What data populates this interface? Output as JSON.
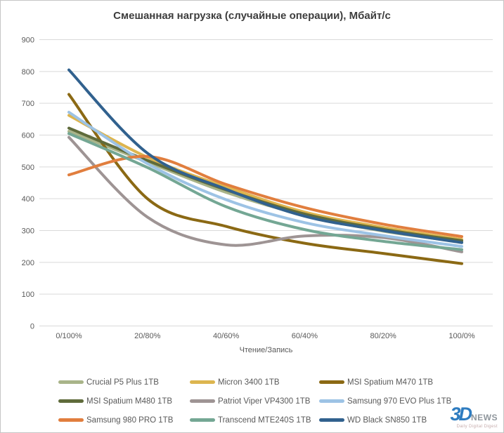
{
  "chart_data": {
    "type": "line",
    "title": "Смешанная нагрузка (случайные операции), Мбайт/с",
    "xlabel": "Чтение/Запись",
    "ylabel": "",
    "categories": [
      "0/100%",
      "20/80%",
      "40/60%",
      "60/40%",
      "80/20%",
      "100/0%"
    ],
    "ylim": [
      0,
      900
    ],
    "ytick_step": 100,
    "grid": true,
    "smooth": true,
    "legend_position": "bottom",
    "axis_text_color": "#595959",
    "gridline_color": "#D9D9D9",
    "series": [
      {
        "name": "Crucial P5 Plus 1TB",
        "color": "#A9B489",
        "values": [
          612,
          515,
          420,
          348,
          298,
          264
        ]
      },
      {
        "name": "Micron 3400 1TB",
        "color": "#DDB54F",
        "values": [
          662,
          530,
          437,
          358,
          310,
          272
        ]
      },
      {
        "name": "MSI Spatium M470 1TB",
        "color": "#8B6914",
        "values": [
          728,
          400,
          313,
          260,
          228,
          196
        ]
      },
      {
        "name": "MSI Spatium M480 1TB",
        "color": "#5F6B3B",
        "values": [
          622,
          520,
          428,
          352,
          304,
          268
        ]
      },
      {
        "name": "Patriot Viper VP4300 1TB",
        "color": "#9E9494",
        "values": [
          593,
          342,
          255,
          283,
          278,
          233
        ]
      },
      {
        "name": "Samsung 970 EVO Plus 1TB",
        "color": "#9DC3E5",
        "values": [
          672,
          510,
          397,
          325,
          284,
          250
        ]
      },
      {
        "name": "Samsung 980 PRO 1TB",
        "color": "#E17E3E",
        "values": [
          475,
          533,
          445,
          372,
          320,
          281
        ]
      },
      {
        "name": "Transcend MTE240S 1TB",
        "color": "#74A794",
        "values": [
          605,
          498,
          375,
          303,
          266,
          240
        ]
      },
      {
        "name": "WD Black SN850 1TB",
        "color": "#31618E",
        "values": [
          805,
          543,
          430,
          345,
          300,
          262
        ]
      }
    ]
  },
  "watermark": {
    "part1": "3D",
    "part2": "NEWS",
    "tagline": "Daily Digital Digest"
  }
}
